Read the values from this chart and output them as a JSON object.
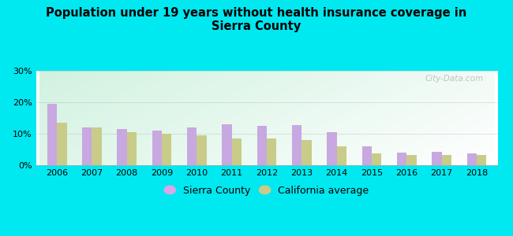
{
  "title": "Population under 19 years without health insurance coverage in\nSierra County",
  "years": [
    2006,
    2007,
    2008,
    2009,
    2010,
    2011,
    2012,
    2013,
    2014,
    2015,
    2016,
    2017,
    2018
  ],
  "sierra_county": [
    19.5,
    12.0,
    11.5,
    11.0,
    12.0,
    13.0,
    12.5,
    12.8,
    10.5,
    6.0,
    4.0,
    4.2,
    3.8
  ],
  "california_avg": [
    13.5,
    12.0,
    10.5,
    10.0,
    9.5,
    8.5,
    8.5,
    8.0,
    6.0,
    3.8,
    3.2,
    3.2,
    3.2
  ],
  "sierra_color": "#c8a8e0",
  "california_color": "#c8cc88",
  "background_outer": "#00e8f0",
  "ylim": [
    0,
    30
  ],
  "yticks": [
    0,
    10,
    20,
    30
  ],
  "bar_width": 0.28,
  "legend_sierra": "Sierra County",
  "legend_california": "California average",
  "legend_sierra_color": "#d8a8e8",
  "legend_california_color": "#c8cc88",
  "watermark": "City-Data.com"
}
